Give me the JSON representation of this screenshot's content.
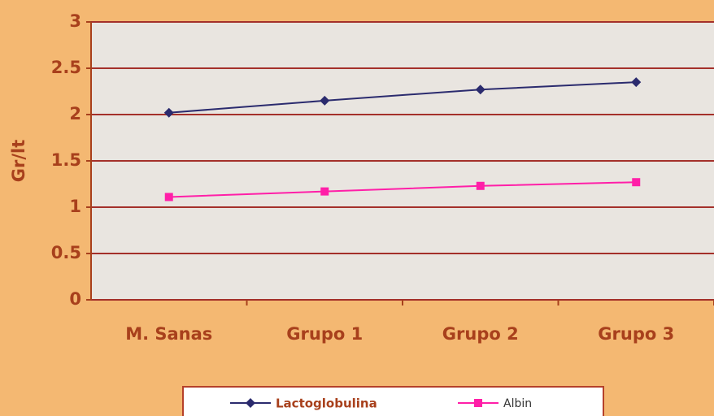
{
  "chart_data": {
    "type": "line",
    "ylabel": "Gr/lt",
    "categories": [
      "M. Sanas",
      "Grupo 1",
      "Grupo 2",
      "Grupo 3"
    ],
    "series": [
      {
        "name": "Lactoglobulina",
        "color": "#2b2b6e",
        "marker": "diamond",
        "values": [
          2.02,
          2.15,
          2.27,
          2.35
        ]
      },
      {
        "name": "Albin",
        "color": "#ff1fa8",
        "marker": "square",
        "values": [
          1.11,
          1.17,
          1.23,
          1.27
        ]
      }
    ],
    "ylim": [
      0,
      3
    ],
    "yticks": [
      0,
      0.5,
      1,
      1.5,
      2,
      2.5,
      3
    ],
    "grid": true,
    "legend": "bottom"
  }
}
